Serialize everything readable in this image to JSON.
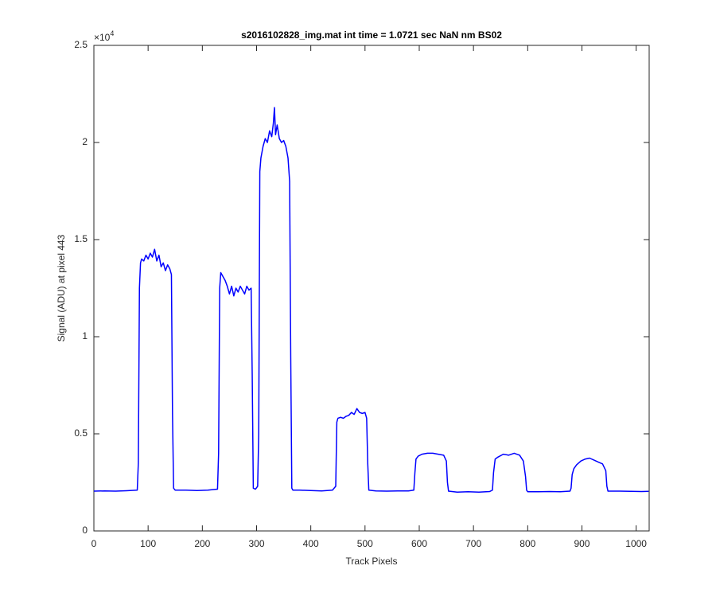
{
  "chart_data": {
    "type": "line",
    "title": "s2016102828_img.mat int time = 1.0721 sec  NaN nm BS02",
    "x_label": "Track Pixels",
    "y_label": "Signal (ADU) at pixel 443",
    "y_multiplier_base": "×10",
    "y_multiplier_exponent": "4",
    "xlim": [
      0,
      1024
    ],
    "ylim": [
      0,
      25000
    ],
    "xticks": [
      0,
      100,
      200,
      300,
      400,
      500,
      600,
      700,
      800,
      900,
      1000
    ],
    "yticks": [
      0,
      {
        "value": 5000,
        "label": "0.5"
      },
      {
        "value": 10000,
        "label": "1"
      },
      {
        "value": 15000,
        "label": "1.5"
      },
      {
        "value": 20000,
        "label": "2"
      },
      {
        "value": 25000,
        "label": "2.5"
      }
    ],
    "grid": false,
    "x": [
      0,
      20,
      40,
      60,
      80,
      82,
      84,
      86,
      88,
      92,
      96,
      100,
      104,
      108,
      112,
      116,
      120,
      124,
      128,
      132,
      136,
      140,
      143,
      145,
      147,
      150,
      170,
      190,
      210,
      228,
      230,
      232,
      234,
      238,
      242,
      246,
      250,
      254,
      258,
      262,
      266,
      270,
      274,
      278,
      282,
      286,
      290,
      292,
      294,
      298,
      302,
      304,
      306,
      308,
      312,
      316,
      320,
      324,
      328,
      331,
      333,
      335,
      338,
      342,
      346,
      350,
      354,
      358,
      361,
      363,
      365,
      367,
      380,
      400,
      420,
      440,
      446,
      448,
      450,
      455,
      460,
      465,
      470,
      475,
      480,
      485,
      490,
      495,
      500,
      503,
      505,
      507,
      520,
      540,
      560,
      580,
      590,
      592,
      594,
      598,
      605,
      615,
      625,
      635,
      645,
      650,
      652,
      654,
      670,
      690,
      710,
      730,
      735,
      737,
      740,
      745,
      755,
      765,
      775,
      785,
      792,
      796,
      798,
      800,
      820,
      840,
      860,
      878,
      880,
      882,
      885,
      890,
      898,
      906,
      914,
      922,
      930,
      938,
      944,
      946,
      948,
      970,
      990,
      1010,
      1023
    ],
    "series": [
      {
        "color": "#0000ff",
        "values": [
          2050,
          2060,
          2050,
          2070,
          2100,
          3500,
          12500,
          13800,
          14000,
          13900,
          14200,
          14000,
          14300,
          14100,
          14500,
          13900,
          14200,
          13600,
          13800,
          13400,
          13700,
          13500,
          13200,
          6000,
          2200,
          2100,
          2100,
          2080,
          2100,
          2150,
          4000,
          12500,
          13300,
          13100,
          12900,
          12600,
          12200,
          12600,
          12100,
          12500,
          12300,
          12600,
          12400,
          12200,
          12600,
          12400,
          12500,
          8000,
          2200,
          2150,
          2300,
          5000,
          18500,
          19200,
          19800,
          20200,
          20000,
          20600,
          20300,
          21000,
          21800,
          20400,
          20900,
          20200,
          20000,
          20100,
          19800,
          19200,
          18000,
          9000,
          2200,
          2100,
          2100,
          2080,
          2060,
          2100,
          2300,
          5600,
          5800,
          5850,
          5800,
          5900,
          5950,
          6100,
          6000,
          6300,
          6100,
          6050,
          6100,
          5800,
          3500,
          2100,
          2060,
          2050,
          2060,
          2060,
          2100,
          3000,
          3700,
          3850,
          3950,
          4000,
          4000,
          3950,
          3900,
          3600,
          2500,
          2050,
          2000,
          2020,
          2000,
          2030,
          2100,
          3000,
          3700,
          3800,
          3950,
          3900,
          4000,
          3900,
          3600,
          2800,
          2100,
          2020,
          2020,
          2030,
          2020,
          2050,
          2200,
          2900,
          3200,
          3400,
          3600,
          3700,
          3750,
          3650,
          3550,
          3450,
          3100,
          2300,
          2050,
          2050,
          2040,
          2030,
          2040
        ]
      }
    ]
  }
}
